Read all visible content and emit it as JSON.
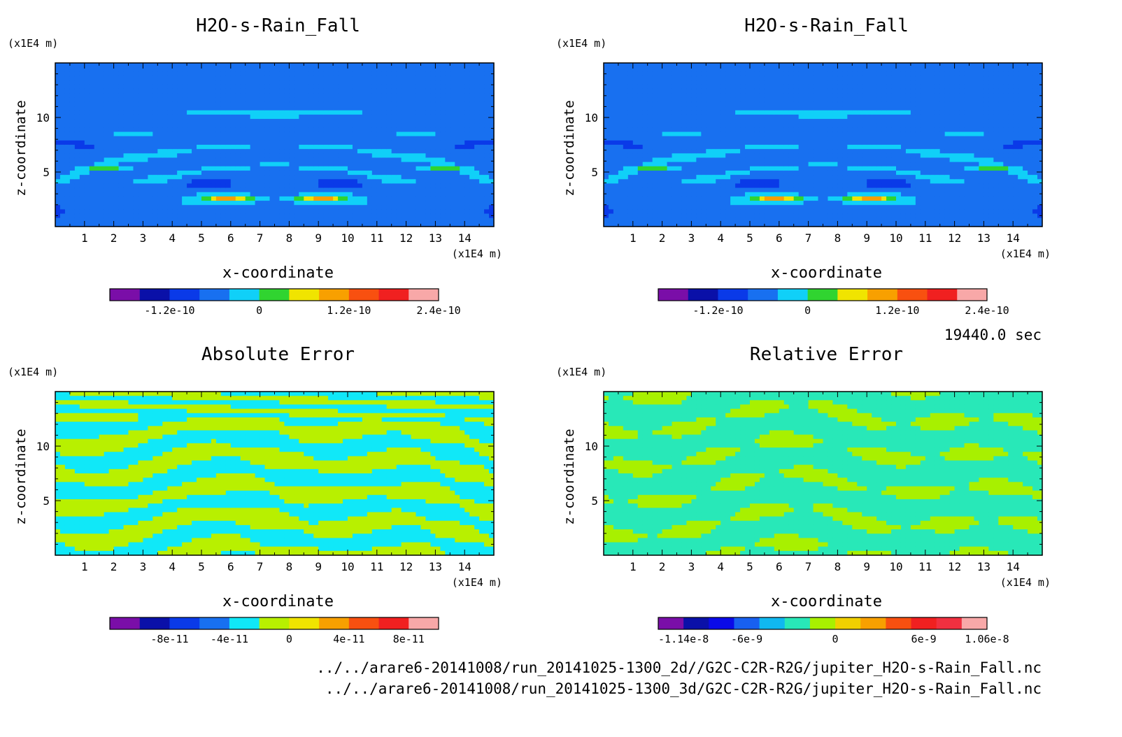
{
  "time_label": "19440.0 sec",
  "paths": [
    "../../arare6-20141008/run_20141025-1300_2d//G2C-C2R-R2G/jupiter_H2O-s-Rain_Fall.nc",
    "../../arare6-20141008/run_20141025-1300_3d/G2C-C2R-R2G/jupiter_H2O-s-Rain_Fall.nc"
  ],
  "chart_data": [
    {
      "type": "heatmap",
      "title": "H2O-s-Rain_Fall",
      "xlabel": "x-coordinate",
      "xunit": "(x1E4 m)",
      "ylabel": "z-coordinate",
      "yunit": "(x1E4 m)",
      "xlim": [
        0,
        15
      ],
      "ylim": [
        0,
        15
      ],
      "xticks": [
        "1",
        "2",
        "3",
        "4",
        "5",
        "6",
        "7",
        "8",
        "9",
        "10",
        "11",
        "12",
        "13",
        "14"
      ],
      "yticks": [
        "5",
        "10"
      ],
      "field": "rain",
      "colorbar": {
        "colors": [
          "#7a0ea8",
          "#0a10a8",
          "#0a3ae8",
          "#1870f0",
          "#10d0f8",
          "#30d430",
          "#f0e400",
          "#f8a000",
          "#f85010",
          "#f02020",
          "#f8a8a8"
        ],
        "labels": [
          {
            "value": "-1.2e-10",
            "at": 1
          },
          {
            "value": "0",
            "at": 4
          },
          {
            "value": "1.2e-10",
            "at": 7
          },
          {
            "value": "2.4e-10",
            "at": 10
          }
        ]
      }
    },
    {
      "type": "heatmap",
      "title": "H2O-s-Rain_Fall",
      "xlabel": "x-coordinate",
      "xunit": "(x1E4 m)",
      "ylabel": "z-coordinate",
      "yunit": "(x1E4 m)",
      "xlim": [
        0,
        15
      ],
      "ylim": [
        0,
        15
      ],
      "xticks": [
        "1",
        "2",
        "3",
        "4",
        "5",
        "6",
        "7",
        "8",
        "9",
        "10",
        "11",
        "12",
        "13",
        "14"
      ],
      "yticks": [
        "5",
        "10"
      ],
      "field": "rain",
      "colorbar": {
        "colors": [
          "#7a0ea8",
          "#0a10a8",
          "#0a3ae8",
          "#1870f0",
          "#10d0f8",
          "#30d430",
          "#f0e400",
          "#f8a000",
          "#f85010",
          "#f02020",
          "#f8a8a8"
        ],
        "labels": [
          {
            "value": "-1.2e-10",
            "at": 1
          },
          {
            "value": "0",
            "at": 4
          },
          {
            "value": "1.2e-10",
            "at": 7
          },
          {
            "value": "2.4e-10",
            "at": 10
          }
        ]
      }
    },
    {
      "type": "heatmap",
      "title": "Absolute Error",
      "xlabel": "x-coordinate",
      "xunit": "(x1E4 m)",
      "ylabel": "z-coordinate",
      "yunit": "(x1E4 m)",
      "xlim": [
        0,
        15
      ],
      "ylim": [
        0,
        15
      ],
      "xticks": [
        "1",
        "2",
        "3",
        "4",
        "5",
        "6",
        "7",
        "8",
        "9",
        "10",
        "11",
        "12",
        "13",
        "14"
      ],
      "yticks": [
        "5",
        "10"
      ],
      "field": "abs",
      "colorbar": {
        "colors": [
          "#7a0ea8",
          "#0a10a8",
          "#0a3ae8",
          "#1870f0",
          "#10e8f8",
          "#b8f000",
          "#f0e400",
          "#f8a000",
          "#f85010",
          "#f02020",
          "#f8a8a8"
        ],
        "labels": [
          {
            "value": "-8e-11",
            "at": 1
          },
          {
            "value": "-4e-11",
            "at": 3
          },
          {
            "value": "0",
            "at": 5
          },
          {
            "value": "4e-11",
            "at": 7
          },
          {
            "value": "8e-11",
            "at": 9
          }
        ]
      }
    },
    {
      "type": "heatmap",
      "title": "Relative Error",
      "xlabel": "x-coordinate",
      "xunit": "(x1E4 m)",
      "ylabel": "z-coordinate",
      "yunit": "(x1E4 m)",
      "xlim": [
        0,
        15
      ],
      "ylim": [
        0,
        15
      ],
      "xticks": [
        "1",
        "2",
        "3",
        "4",
        "5",
        "6",
        "7",
        "8",
        "9",
        "10",
        "11",
        "12",
        "13",
        "14"
      ],
      "yticks": [
        "5",
        "10"
      ],
      "field": "rel",
      "colorbar": {
        "colors": [
          "#7a0ea8",
          "#0a10a8",
          "#0a0ae8",
          "#1860f0",
          "#10b8f0",
          "#28e8b8",
          "#a8f000",
          "#f0d000",
          "#f8a000",
          "#f85010",
          "#f02020",
          "#f03040",
          "#f8a8a8"
        ],
        "labels": [
          {
            "value": "-1.14e-8",
            "at": 0
          },
          {
            "value": "-6e-9",
            "at": 2.5
          },
          {
            "value": "0",
            "at": 6
          },
          {
            "value": "6e-9",
            "at": 9.5
          },
          {
            "value": "1.06e-8",
            "at": 12
          }
        ]
      }
    }
  ]
}
